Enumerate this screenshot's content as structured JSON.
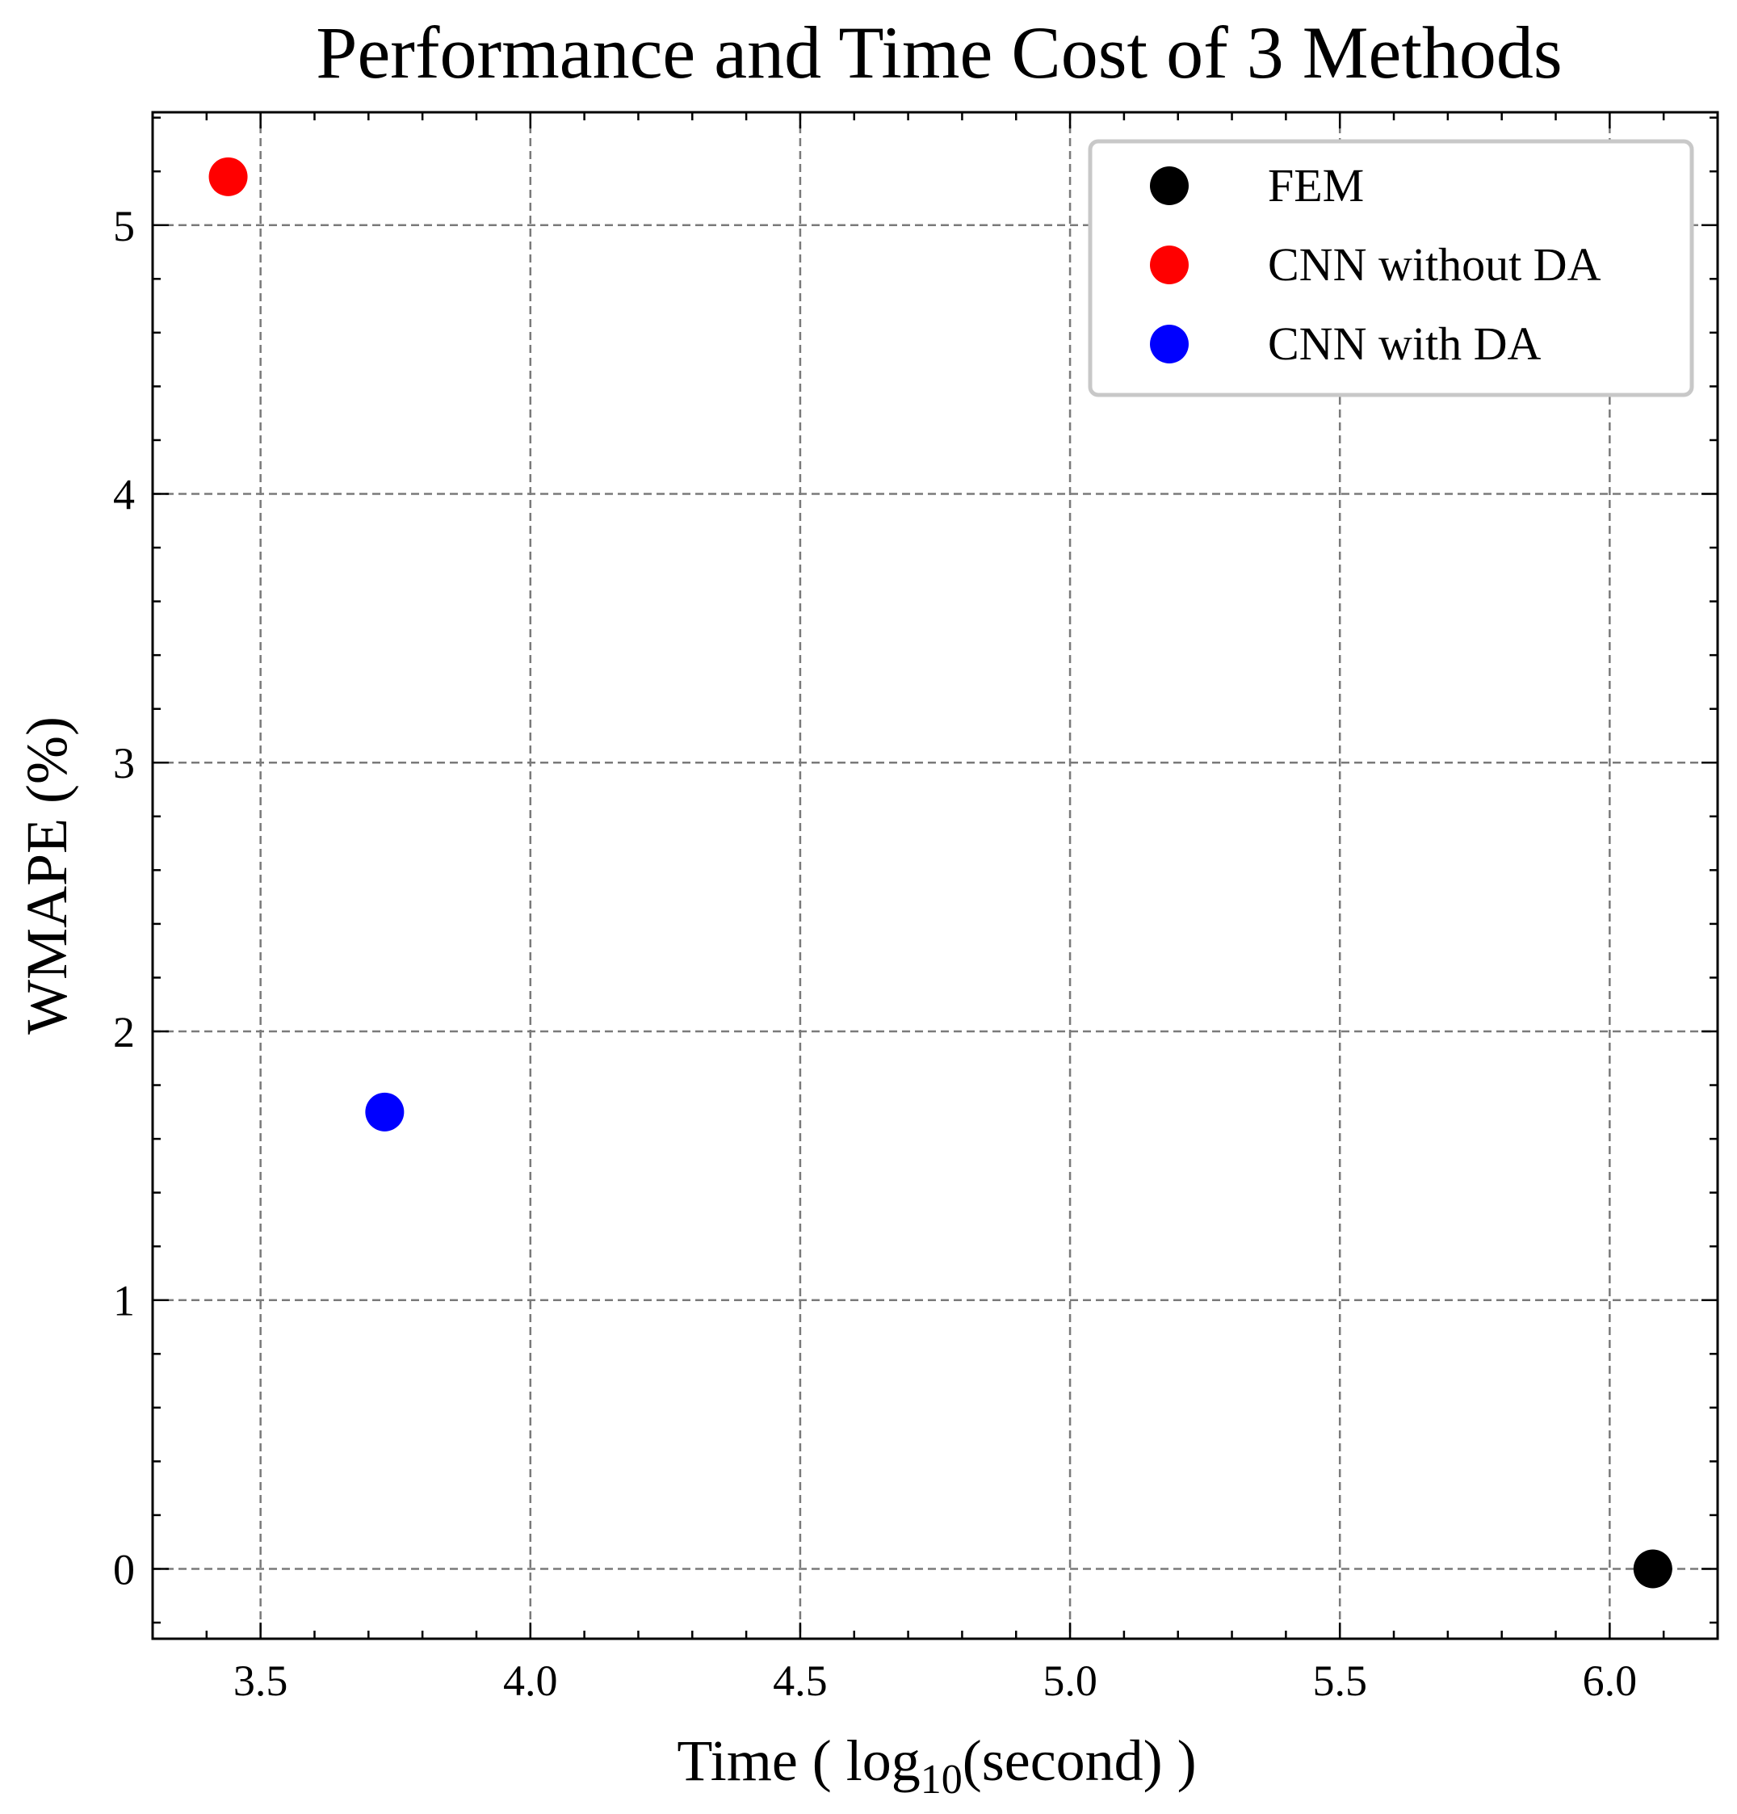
{
  "chart_data": {
    "type": "scatter",
    "title": "Performance and Time Cost of 3 Methods",
    "xlabel": {
      "prefix": "Time ( log",
      "sub": "10",
      "suffix": "(second) )"
    },
    "ylabel": "WMAPE (%)",
    "xlim": [
      3.3,
      6.2
    ],
    "ylim": [
      -0.26,
      5.42
    ],
    "xticks": [
      3.5,
      4.0,
      4.5,
      5.0,
      5.5,
      6.0
    ],
    "xtick_labels": [
      "3.5",
      "4.0",
      "4.5",
      "5.0",
      "5.5",
      "6.0"
    ],
    "yticks": [
      0,
      1,
      2,
      3,
      4,
      5
    ],
    "ytick_labels": [
      "0",
      "1",
      "2",
      "3",
      "4",
      "5"
    ],
    "grid": true,
    "legend_position": "top-right",
    "series": [
      {
        "name": "FEM",
        "color": "#000000",
        "x": [
          6.08
        ],
        "y": [
          0.0
        ]
      },
      {
        "name": "CNN without DA",
        "color": "#ff0000",
        "x": [
          3.44
        ],
        "y": [
          5.18
        ]
      },
      {
        "name": "CNN with DA",
        "color": "#0000ff",
        "x": [
          3.73
        ],
        "y": [
          1.7
        ]
      }
    ]
  }
}
